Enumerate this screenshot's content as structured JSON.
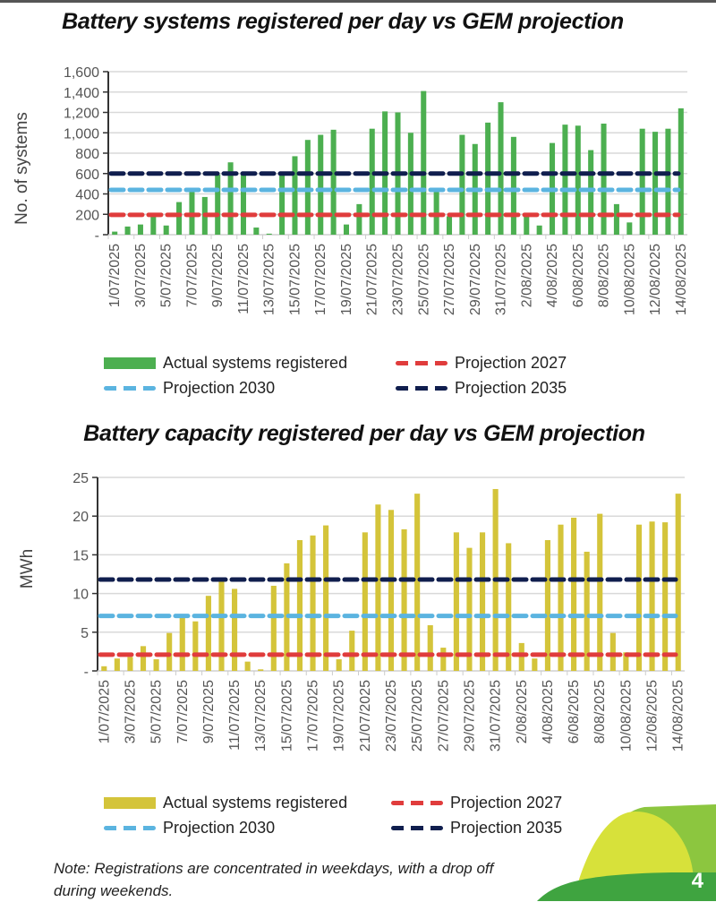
{
  "page": {
    "number": "4",
    "note": "Note: Registrations are concentrated in weekdays, with a drop off during weekends."
  },
  "chart_data": [
    {
      "type": "bar",
      "title": "Battery systems registered per day vs GEM projection",
      "xlabel": "",
      "ylabel": "No. of systems",
      "ylim": [
        0,
        1600
      ],
      "yticks": [
        0,
        200,
        400,
        600,
        800,
        1000,
        1200,
        1400,
        1600
      ],
      "ytick_labels": [
        "-",
        "200",
        "400",
        "600",
        "800",
        "1,000",
        "1,200",
        "1,400",
        "1,600"
      ],
      "grid": true,
      "legend_position": "bottom",
      "categories": [
        "1/07/2025",
        "2/07/2025",
        "3/07/2025",
        "4/07/2025",
        "5/07/2025",
        "6/07/2025",
        "7/07/2025",
        "8/07/2025",
        "9/07/2025",
        "10/07/2025",
        "11/07/2025",
        "12/07/2025",
        "13/07/2025",
        "14/07/2025",
        "15/07/2025",
        "16/07/2025",
        "17/07/2025",
        "18/07/2025",
        "19/07/2025",
        "20/07/2025",
        "21/07/2025",
        "22/07/2025",
        "23/07/2025",
        "24/07/2025",
        "25/07/2025",
        "26/07/2025",
        "27/07/2025",
        "28/07/2025",
        "29/07/2025",
        "30/07/2025",
        "31/07/2025",
        "1/08/2025",
        "2/08/2025",
        "3/08/2025",
        "4/08/2025",
        "5/08/2025",
        "6/08/2025",
        "7/08/2025",
        "8/08/2025",
        "9/08/2025",
        "10/08/2025",
        "11/08/2025",
        "12/08/2025",
        "13/08/2025",
        "14/08/2025"
      ],
      "tick_label_every": 2,
      "series": [
        {
          "name": "Actual systems registered",
          "kind": "bar",
          "color": "#4caf50",
          "values": [
            30,
            80,
            100,
            180,
            90,
            320,
            440,
            370,
            590,
            710,
            590,
            70,
            10,
            600,
            770,
            930,
            980,
            1030,
            100,
            300,
            1040,
            1210,
            1200,
            1000,
            1410,
            440,
            180,
            980,
            890,
            1100,
            1300,
            960,
            190,
            90,
            900,
            1080,
            1070,
            830,
            1090,
            300,
            120,
            1040,
            1010,
            1040,
            1240
          ]
        },
        {
          "name": "Projection 2027",
          "kind": "dashed-line",
          "color": "#e03c3c",
          "value": 195
        },
        {
          "name": "Projection 2030",
          "kind": "dashed-line",
          "color": "#5bb4e0",
          "value": 440
        },
        {
          "name": "Projection 2035",
          "kind": "dashed-line",
          "color": "#101e4e",
          "value": 600
        }
      ]
    },
    {
      "type": "bar",
      "title": "Battery capacity registered per day vs GEM projection",
      "xlabel": "",
      "ylabel": "MWh",
      "ylim": [
        0,
        25
      ],
      "yticks": [
        0,
        5,
        10,
        15,
        20,
        25
      ],
      "ytick_labels": [
        "-",
        "5",
        "10",
        "15",
        "20",
        "25"
      ],
      "grid": true,
      "legend_position": "bottom",
      "categories": [
        "1/07/2025",
        "2/07/2025",
        "3/07/2025",
        "4/07/2025",
        "5/07/2025",
        "6/07/2025",
        "7/07/2025",
        "8/07/2025",
        "9/07/2025",
        "10/07/2025",
        "11/07/2025",
        "12/07/2025",
        "13/07/2025",
        "14/07/2025",
        "15/07/2025",
        "16/07/2025",
        "17/07/2025",
        "18/07/2025",
        "19/07/2025",
        "20/07/2025",
        "21/07/2025",
        "22/07/2025",
        "23/07/2025",
        "24/07/2025",
        "25/07/2025",
        "26/07/2025",
        "27/07/2025",
        "28/07/2025",
        "29/07/2025",
        "30/07/2025",
        "31/07/2025",
        "1/08/2025",
        "2/08/2025",
        "3/08/2025",
        "4/08/2025",
        "5/08/2025",
        "6/08/2025",
        "7/08/2025",
        "8/08/2025",
        "9/08/2025",
        "10/08/2025",
        "11/08/2025",
        "12/08/2025",
        "13/08/2025",
        "14/08/2025"
      ],
      "tick_label_every": 2,
      "series": [
        {
          "name": "Actual systems registered",
          "kind": "bar",
          "color": "#d4c43a",
          "values": [
            0.6,
            1.6,
            1.8,
            3.2,
            1.5,
            4.9,
            6.9,
            6.4,
            9.7,
            11.6,
            10.6,
            1.2,
            0.2,
            11.0,
            13.9,
            16.9,
            17.5,
            18.8,
            1.5,
            5.2,
            17.9,
            21.5,
            20.8,
            18.3,
            22.9,
            5.9,
            3.0,
            17.9,
            15.9,
            17.9,
            23.5,
            16.5,
            3.6,
            1.6,
            16.9,
            18.9,
            19.8,
            15.4,
            20.3,
            4.9,
            2.4,
            18.9,
            19.3,
            19.2,
            22.9
          ]
        },
        {
          "name": "Projection 2027",
          "kind": "dashed-line",
          "color": "#e03c3c",
          "value": 2.1
        },
        {
          "name": "Projection 2030",
          "kind": "dashed-line",
          "color": "#5bb4e0",
          "value": 7.1
        },
        {
          "name": "Projection 2035",
          "kind": "dashed-line",
          "color": "#101e4e",
          "value": 11.8
        }
      ]
    }
  ]
}
